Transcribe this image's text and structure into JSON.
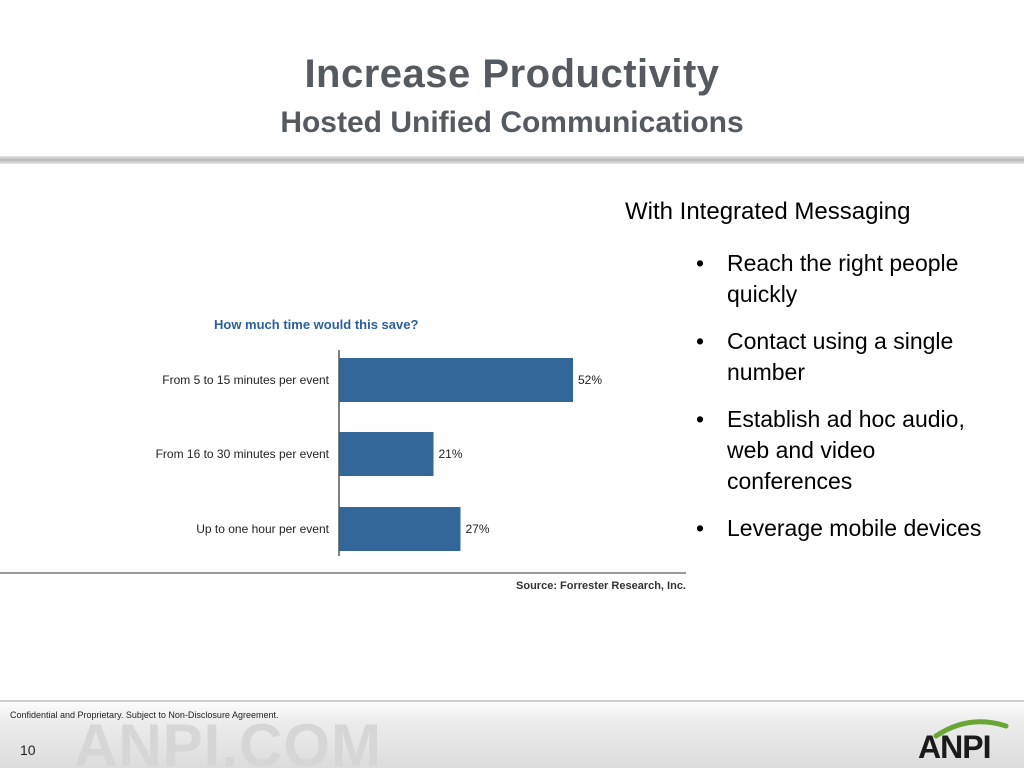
{
  "slide": {
    "title": "Increase Productivity",
    "subtitle": "Hosted Unified Communications",
    "right_heading": "With Integrated Messaging",
    "bullets": [
      "Reach the right people quickly",
      "Contact using a single number",
      "Establish ad hoc audio, web and video conferences",
      "Leverage mobile devices"
    ],
    "bullet_symbol": "•",
    "footer_text": "Confidential and Proprietary. Subject to Non-Disclosure Agreement.",
    "page_number": "10",
    "watermark": "ANPI.COM",
    "logo_text": "ANPI"
  },
  "colors": {
    "bar": "#336699",
    "chart_title": "#2d5f9a",
    "title_text": "#555a61",
    "logo_arc": "#6aa636"
  },
  "chart_data": {
    "type": "bar",
    "orientation": "horizontal",
    "title": "How much time would this save?",
    "categories": [
      "From 5 to 15 minutes per event",
      "From 16 to 30 minutes per event",
      "Up to one hour per event"
    ],
    "values": [
      52,
      21,
      27
    ],
    "value_labels": [
      "52%",
      "21%",
      "27%"
    ],
    "xlim": [
      0,
      100
    ],
    "grid": false,
    "source": "Source: Forrester Research, Inc."
  }
}
